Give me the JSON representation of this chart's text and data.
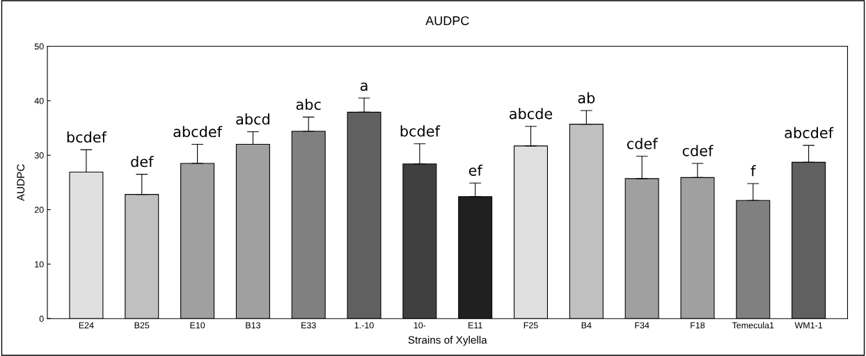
{
  "chart_data": {
    "type": "bar",
    "title": "AUDPC",
    "xlabel": "Strains of Xylella",
    "ylabel": "AUDPC",
    "categories": [
      "E24",
      "B25",
      "E10",
      "B13",
      "E33",
      "1.-10",
      "10-",
      "E11",
      "F25",
      "B4",
      "F34",
      "F18",
      "Temecula1",
      "WM1-1"
    ],
    "values": [
      26.9,
      22.8,
      28.5,
      32.0,
      34.4,
      37.9,
      28.4,
      22.4,
      31.7,
      35.7,
      25.7,
      25.9,
      21.7,
      28.7
    ],
    "errors": [
      [
        26.9,
        31.0
      ],
      [
        22.8,
        26.5
      ],
      [
        28.5,
        32.0
      ],
      [
        32.0,
        34.3
      ],
      [
        34.4,
        37.0
      ],
      [
        37.9,
        40.5
      ],
      [
        28.4,
        32.1
      ],
      [
        22.4,
        24.9
      ],
      [
        31.7,
        35.3
      ],
      [
        35.7,
        38.2
      ],
      [
        25.7,
        29.8
      ],
      [
        25.9,
        28.5
      ],
      [
        21.7,
        24.8
      ],
      [
        28.7,
        31.8
      ]
    ],
    "colors": [
      "#e0e0e0",
      "#c0c0c0",
      "#a0a0a0",
      "#a0a0a0",
      "#808080",
      "#606060",
      "#404040",
      "#202020",
      "#e0e0e0",
      "#c0c0c0",
      "#a0a0a0",
      "#a0a0a0",
      "#808080",
      "#606060"
    ],
    "value_labels": [
      "bcdef",
      "def",
      "abcdef",
      "abcd",
      "abc",
      "a",
      "bcdef",
      "ef",
      "abcde",
      "ab",
      "cdef",
      "cdef",
      "f",
      "abcdef"
    ],
    "ylim": [
      0,
      50
    ],
    "yticks": [
      0,
      10,
      20,
      30,
      40,
      50
    ],
    "grid": false
  }
}
